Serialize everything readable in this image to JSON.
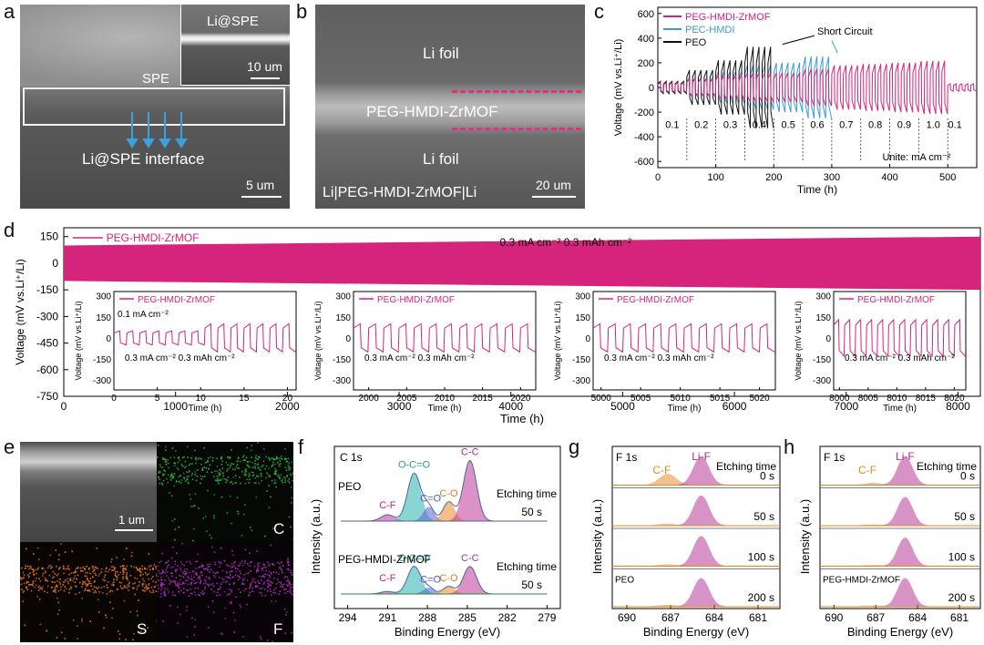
{
  "panel_letters": {
    "a": "a",
    "b": "b",
    "c": "c",
    "d": "d",
    "e": "e",
    "f": "f",
    "g": "g",
    "h": "h"
  },
  "panel_a": {
    "inset_title": "Li@SPE",
    "inset_scale": "10 um",
    "label_spe": "SPE",
    "label_interface": "Li@SPE interface",
    "scale": "5 um"
  },
  "panel_b": {
    "top": "Li foil",
    "middle": "PEG-HMDI-ZrMOF",
    "bottom": "Li foil",
    "stack": "Li|PEG-HMDI-ZrMOF|Li",
    "scale": "20 um"
  },
  "panel_e": {
    "scale": "1 um",
    "maps": {
      "C": "C",
      "S": "S",
      "F": "F"
    }
  },
  "colors": {
    "peg": "#d6247c",
    "pec": "#3a9ad9",
    "peo": "#111111",
    "c1s_fill1": "#2ab3b0",
    "c1s_fill2": "#5b63c9",
    "c1s_fill3": "#ef8a2a",
    "c1s_fill4": "#c0399a",
    "lif": "#b02a8f",
    "cf": "#e3871e"
  },
  "chart_data": [
    {
      "id": "c",
      "type": "line",
      "ylabel": "Voltage (mV vs.Li⁺/Li)",
      "xlabel": "Time (h)",
      "xlim": [
        0,
        550
      ],
      "ylim": [
        -650,
        650
      ],
      "xticks": [
        0,
        100,
        200,
        300,
        400,
        500
      ],
      "yticks": [
        600,
        400,
        200,
        0,
        -200,
        -400,
        -600
      ],
      "series": [
        {
          "name": "PEG-HMDI-ZrMOF"
        },
        {
          "name": "PEC-HMDI"
        },
        {
          "name": "PEO"
        }
      ],
      "annotation": "Short Circuit",
      "unit_note": "Unite: mA cm⁻²",
      "rate_steps": [
        "0.1",
        "0.2",
        "0.3",
        "0.4",
        "0.5",
        "0.6",
        "0.7",
        "0.8",
        "0.9",
        "1.0",
        "0.1"
      ],
      "step_boundaries": [
        50,
        100,
        150,
        200,
        250,
        300,
        350,
        400,
        450,
        500
      ],
      "peg_amplitudes": [
        40,
        70,
        100,
        120,
        120,
        150,
        180,
        190,
        200,
        215,
        30
      ],
      "pec_amplitudes": [
        40,
        80,
        130,
        180,
        200,
        250
      ],
      "peo_amplitudes": [
        50,
        140,
        220,
        330
      ]
    },
    {
      "id": "d",
      "type": "line",
      "ylabel": "Voltage (mV vs.Li⁺/Li)",
      "xlabel": "Time (h)",
      "xlim": [
        0,
        8200
      ],
      "ylim": [
        -750,
        200
      ],
      "xticks": [
        0,
        1000,
        2000,
        3000,
        4000,
        5000,
        6000,
        7000,
        8000
      ],
      "yticks": [
        150,
        0,
        -150,
        -300,
        -450,
        -600,
        -750
      ],
      "series": [
        {
          "name": "PEG-HMDI-ZrMOF",
          "envelope_start": 100,
          "envelope_end": 150
        }
      ],
      "condition": "0.3 mA cm⁻²   0.3 mAh cm⁻²",
      "insets": [
        {
          "legend": "PEG-HMDI-ZrMOF",
          "xlabel": "Time (h)",
          "ylabel": "Voltage (mV vs.Li⁺/Li)",
          "xticks": [
            0,
            5,
            10,
            15,
            20
          ],
          "xlim": [
            0,
            21
          ],
          "yticks": [
            300,
            150,
            0,
            -150,
            -300
          ],
          "ylim": [
            -370,
            330
          ],
          "notes": [
            "0.1 mA cm⁻²",
            "0.3 mA cm⁻²  0.3 mAh cm⁻²"
          ],
          "amp_lo": 50,
          "amp_hi": 100,
          "switch": 10,
          "cycles": 14
        },
        {
          "legend": "PEG-HMDI-ZrMOF",
          "xlabel": "Time (h)",
          "ylabel": "Voltage (mV vs.Li⁺/Li)",
          "xticks": [
            2000,
            2005,
            2010,
            2015,
            2020
          ],
          "xlim": [
            1998,
            2022
          ],
          "yticks": [
            300,
            150,
            0,
            -150,
            -300
          ],
          "ylim": [
            -370,
            330
          ],
          "notes": [
            "0.3 mA cm⁻²  0.3 mAh cm⁻²"
          ],
          "amp_lo": 100,
          "amp_hi": 100,
          "switch": 0,
          "cycles": 12
        },
        {
          "legend": "PEG-HMDI-ZrMOF",
          "xlabel": "Time (h)",
          "ylabel": "Voltage (mV vs.Li⁺/Li)",
          "xticks": [
            5000,
            5005,
            5010,
            5015,
            5020
          ],
          "xlim": [
            4999,
            5022
          ],
          "yticks": [
            300,
            150,
            0,
            -150,
            -300
          ],
          "ylim": [
            -370,
            330
          ],
          "notes": [
            "0.3 mA cm⁻²  0.3 mAh cm⁻²"
          ],
          "amp_lo": 100,
          "amp_hi": 100,
          "switch": 0,
          "cycles": 12
        },
        {
          "legend": "PEG-HMDI-ZrMOF",
          "xlabel": "Time (h)",
          "ylabel": "Voltage (mV vs.Li⁺/Li)",
          "xticks": [
            8000,
            8005,
            8010,
            8015,
            8020
          ],
          "xlim": [
            7999,
            8022
          ],
          "yticks": [
            300,
            150,
            0,
            -150,
            -300
          ],
          "ylim": [
            -370,
            330
          ],
          "notes": [
            "0.3 mA cm⁻²  0.3 mAh cm⁻²"
          ],
          "amp_lo": 130,
          "amp_hi": 130,
          "switch": 0,
          "cycles": 12
        }
      ]
    },
    {
      "id": "f",
      "type": "area",
      "title": "C 1s",
      "xlabel": "Binding Energy (eV)",
      "ylabel": "Intensity (a.u.)",
      "xlim": [
        295,
        278
      ],
      "xticks": [
        294,
        291,
        288,
        285,
        282,
        279
      ],
      "spectra": [
        {
          "sample": "PEO",
          "etch_label": "Etching time",
          "etch": "50 s",
          "peaks": [
            {
              "label": "C-F",
              "pos": 291.0,
              "h": 0.1,
              "w": 0.7
            },
            {
              "label": "O-C=O",
              "pos": 289.0,
              "h": 0.75,
              "w": 0.7
            },
            {
              "label": "C=O",
              "pos": 287.9,
              "h": 0.22,
              "w": 0.55
            },
            {
              "label": "C-O",
              "pos": 286.4,
              "h": 0.3,
              "w": 0.6
            },
            {
              "label": "C-C",
              "pos": 284.8,
              "h": 0.95,
              "w": 0.7
            }
          ]
        },
        {
          "sample": "PEG-HMDI-ZrMOF",
          "etch_label": "Etching time",
          "etch": "50 s",
          "peaks": [
            {
              "label": "C-F",
              "pos": 291.0,
              "h": 0.05,
              "w": 0.7
            },
            {
              "label": "O-C=O",
              "pos": 289.0,
              "h": 0.55,
              "w": 0.7
            },
            {
              "label": "C=O",
              "pos": 287.9,
              "h": 0.12,
              "w": 0.55
            },
            {
              "label": "C-O",
              "pos": 286.4,
              "h": 0.15,
              "w": 0.6
            },
            {
              "label": "C-C",
              "pos": 284.8,
              "h": 0.55,
              "w": 0.7
            }
          ]
        }
      ]
    },
    {
      "id": "g",
      "type": "area",
      "title": "F 1s",
      "sample": "PEO",
      "xlabel": "Binding Energy (eV)",
      "ylabel": "Intensity (a.u.)",
      "xlim": [
        691,
        679.5
      ],
      "xticks": [
        690,
        687,
        684,
        681
      ],
      "peak_labels": [
        "C-F",
        "Li-F"
      ],
      "etch_label": "Etching time",
      "spectra": [
        {
          "etch": "0 s",
          "lif": 0.9,
          "cf": 0.35
        },
        {
          "etch": "50 s",
          "lif": 0.95,
          "cf": 0.05
        },
        {
          "etch": "100 s",
          "lif": 0.95,
          "cf": 0.05
        },
        {
          "etch": "200 s",
          "lif": 0.9,
          "cf": 0.05
        }
      ]
    },
    {
      "id": "h",
      "type": "area",
      "title": "F 1s",
      "sample": "PEG-HMDI-ZrMOF",
      "xlabel": "Binding Energy (eV)",
      "ylabel": "Intensity (a.u.)",
      "xlim": [
        691,
        679.5
      ],
      "xticks": [
        690,
        687,
        684,
        681
      ],
      "peak_labels": [
        "C-F",
        "Li-F"
      ],
      "etch_label": "Etching time",
      "spectra": [
        {
          "etch": "0 s",
          "lif": 0.9,
          "cf": 0.06
        },
        {
          "etch": "50 s",
          "lif": 0.9,
          "cf": 0.03
        },
        {
          "etch": "100 s",
          "lif": 0.9,
          "cf": 0.03
        },
        {
          "etch": "200 s",
          "lif": 0.9,
          "cf": 0.03
        }
      ]
    }
  ]
}
